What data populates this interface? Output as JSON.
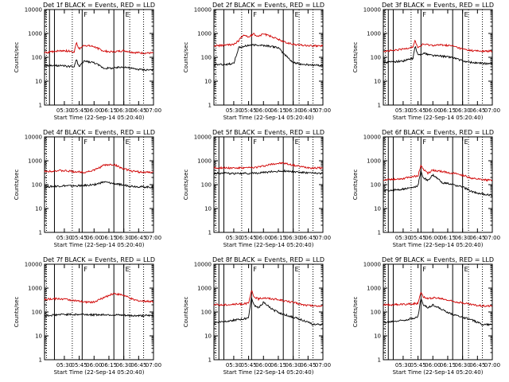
{
  "figure": {
    "x_axis_label": "Start Time (22-Sep-14 05:20:40)",
    "y_axis_label": "Counts/sec",
    "y_tick_labels": [
      "1",
      "10",
      "100",
      "1000",
      "10000"
    ],
    "x_tick_labels": [
      "05:30",
      "05:45",
      "06:00",
      "06:15",
      "06:30",
      "06:45",
      "07:00"
    ],
    "colors": {
      "events": "#000000",
      "lld": "#d00000",
      "axes": "#000000"
    }
  },
  "chart_data": [
    {
      "type": "line",
      "title": "Det 1f BLACK = Events, RED = LLD",
      "ylog": true,
      "ylim": [
        1,
        10000
      ],
      "xlim_minutes": [
        -10,
        100
      ],
      "event_markers_minutes": [
        -5,
        0,
        28,
        60,
        70
      ],
      "dashed_markers_minutes": [
        -8,
        18,
        76,
        90
      ],
      "segment_labels": [
        "F",
        "E"
      ],
      "series": [
        {
          "name": "Events",
          "x": [
            -10,
            0,
            10,
            20,
            22,
            25,
            30,
            40,
            50,
            60,
            70,
            80,
            90,
            100
          ],
          "values": [
            45,
            45,
            43,
            40,
            80,
            40,
            70,
            60,
            35,
            35,
            40,
            33,
            30,
            30
          ]
        },
        {
          "name": "LLD",
          "x": [
            -10,
            0,
            10,
            20,
            22,
            25,
            30,
            40,
            50,
            60,
            70,
            80,
            90,
            100
          ],
          "values": [
            150,
            180,
            190,
            170,
            420,
            220,
            320,
            280,
            180,
            170,
            190,
            160,
            150,
            150
          ]
        }
      ]
    },
    {
      "type": "line",
      "title": "Det 2f BLACK = Events, RED = LLD",
      "ylog": true,
      "ylim": [
        1,
        10000
      ],
      "xlim_minutes": [
        -10,
        100
      ],
      "event_markers_minutes": [
        0,
        28,
        60,
        70
      ],
      "dashed_markers_minutes": [
        -8,
        18,
        76,
        90
      ],
      "segment_labels": [
        "F",
        "E"
      ],
      "series": [
        {
          "name": "Events",
          "x": [
            -10,
            0,
            10,
            15,
            25,
            35,
            45,
            55,
            60,
            70,
            80,
            90,
            100
          ],
          "values": [
            50,
            50,
            55,
            250,
            320,
            330,
            300,
            250,
            150,
            60,
            50,
            48,
            45
          ]
        },
        {
          "name": "LLD",
          "x": [
            -10,
            0,
            10,
            15,
            20,
            25,
            30,
            35,
            40,
            45,
            50,
            60,
            70,
            80,
            90,
            100
          ],
          "values": [
            300,
            320,
            350,
            500,
            900,
            700,
            950,
            750,
            1000,
            800,
            700,
            450,
            350,
            320,
            300,
            300
          ]
        }
      ]
    },
    {
      "type": "line",
      "title": "Det 3f BLACK = Events, RED = LLD",
      "ylog": true,
      "ylim": [
        1,
        10000
      ],
      "xlim_minutes": [
        -10,
        100
      ],
      "event_markers_minutes": [
        -5,
        0,
        28,
        60,
        70
      ],
      "dashed_markers_minutes": [
        -8,
        18,
        76,
        90
      ],
      "segment_labels": [
        "F",
        "E"
      ],
      "series": [
        {
          "name": "Events",
          "x": [
            -10,
            0,
            10,
            20,
            22,
            25,
            30,
            40,
            50,
            60,
            70,
            80,
            90,
            100
          ],
          "values": [
            60,
            65,
            70,
            90,
            300,
            120,
            150,
            120,
            110,
            100,
            70,
            60,
            55,
            55
          ]
        },
        {
          "name": "LLD",
          "x": [
            -10,
            0,
            10,
            20,
            22,
            25,
            30,
            40,
            50,
            60,
            70,
            80,
            90,
            100
          ],
          "values": [
            180,
            190,
            220,
            280,
            500,
            250,
            350,
            320,
            330,
            300,
            220,
            190,
            180,
            180
          ]
        }
      ]
    },
    {
      "type": "line",
      "title": "Det 4f BLACK = Events, RED = LLD",
      "ylog": true,
      "ylim": [
        1,
        10000
      ],
      "xlim_minutes": [
        -10,
        100
      ],
      "event_markers_minutes": [
        0,
        28,
        60,
        70
      ],
      "dashed_markers_minutes": [
        -8,
        18,
        76,
        90
      ],
      "segment_labels": [
        "F",
        "E"
      ],
      "series": [
        {
          "name": "Events",
          "x": [
            -10,
            0,
            10,
            20,
            30,
            40,
            50,
            60,
            70,
            80,
            90,
            100
          ],
          "values": [
            80,
            85,
            90,
            88,
            92,
            100,
            130,
            110,
            95,
            85,
            80,
            78
          ]
        },
        {
          "name": "LLD",
          "x": [
            -10,
            0,
            10,
            20,
            30,
            40,
            50,
            60,
            70,
            80,
            90,
            100
          ],
          "values": [
            350,
            380,
            380,
            350,
            330,
            400,
            650,
            700,
            450,
            360,
            330,
            320
          ]
        }
      ]
    },
    {
      "type": "line",
      "title": "Det 5f BLACK = Events, RED = LLD",
      "ylog": true,
      "ylim": [
        1,
        10000
      ],
      "xlim_minutes": [
        -10,
        100
      ],
      "event_markers_minutes": [
        -5,
        0,
        28,
        60,
        70
      ],
      "dashed_markers_minutes": [
        -8,
        18,
        76,
        90
      ],
      "segment_labels": [
        "F",
        "E"
      ],
      "series": [
        {
          "name": "Events",
          "x": [
            -10,
            0,
            10,
            20,
            30,
            40,
            50,
            60,
            70,
            80,
            90,
            100
          ],
          "values": [
            300,
            300,
            290,
            290,
            300,
            320,
            350,
            380,
            350,
            320,
            300,
            300
          ]
        },
        {
          "name": "LLD",
          "x": [
            -10,
            0,
            10,
            20,
            30,
            40,
            50,
            60,
            70,
            80,
            90,
            100
          ],
          "values": [
            500,
            510,
            500,
            500,
            520,
            600,
            750,
            800,
            650,
            550,
            500,
            500
          ]
        }
      ]
    },
    {
      "type": "line",
      "title": "Det 6f BLACK = Events, RED = LLD",
      "ylog": true,
      "ylim": [
        1,
        10000
      ],
      "xlim_minutes": [
        -10,
        100
      ],
      "event_markers_minutes": [
        -5,
        0,
        28,
        60,
        70
      ],
      "dashed_markers_minutes": [
        -8,
        18,
        76,
        90
      ],
      "segment_labels": [
        "F",
        "E"
      ],
      "series": [
        {
          "name": "Events",
          "x": [
            -10,
            0,
            10,
            20,
            25,
            28,
            30,
            35,
            40,
            50,
            60,
            70,
            80,
            90,
            100
          ],
          "values": [
            55,
            60,
            65,
            75,
            90,
            400,
            200,
            150,
            250,
            120,
            100,
            80,
            50,
            40,
            35
          ]
        },
        {
          "name": "LLD",
          "x": [
            -10,
            0,
            10,
            20,
            25,
            28,
            30,
            35,
            40,
            50,
            60,
            70,
            80,
            90,
            100
          ],
          "values": [
            160,
            170,
            180,
            220,
            230,
            650,
            450,
            300,
            400,
            350,
            300,
            250,
            180,
            160,
            150
          ]
        }
      ]
    },
    {
      "type": "line",
      "title": "Det 7f BLACK = Events, RED = LLD",
      "ylog": true,
      "ylim": [
        1,
        10000
      ],
      "xlim_minutes": [
        -10,
        100
      ],
      "event_markers_minutes": [
        0,
        28,
        60,
        70
      ],
      "dashed_markers_minutes": [
        -8,
        18,
        76,
        90
      ],
      "segment_labels": [
        "F",
        "E"
      ],
      "series": [
        {
          "name": "Events",
          "x": [
            -10,
            0,
            10,
            20,
            30,
            40,
            50,
            60,
            70,
            80,
            90,
            100
          ],
          "values": [
            70,
            75,
            80,
            78,
            80,
            75,
            78,
            75,
            72,
            70,
            70,
            70
          ]
        },
        {
          "name": "LLD",
          "x": [
            -10,
            0,
            10,
            20,
            30,
            40,
            50,
            60,
            70,
            80,
            90,
            100
          ],
          "values": [
            330,
            360,
            350,
            300,
            260,
            260,
            400,
            600,
            500,
            320,
            280,
            280
          ]
        }
      ]
    },
    {
      "type": "line",
      "title": "Det 8f BLACK = Events, RED = LLD",
      "ylog": true,
      "ylim": [
        1,
        10000
      ],
      "xlim_minutes": [
        -10,
        100
      ],
      "event_markers_minutes": [
        -5,
        0,
        28,
        60,
        70
      ],
      "dashed_markers_minutes": [
        -8,
        18,
        76,
        90
      ],
      "segment_labels": [
        "F",
        "E"
      ],
      "series": [
        {
          "name": "Events",
          "x": [
            -10,
            0,
            10,
            20,
            25,
            28,
            30,
            35,
            40,
            50,
            60,
            70,
            80,
            90,
            100
          ],
          "values": [
            35,
            40,
            45,
            50,
            60,
            450,
            200,
            150,
            250,
            120,
            80,
            60,
            45,
            30,
            30
          ]
        },
        {
          "name": "LLD",
          "x": [
            -10,
            0,
            10,
            20,
            25,
            28,
            30,
            35,
            40,
            50,
            60,
            70,
            80,
            90,
            100
          ],
          "values": [
            200,
            200,
            210,
            220,
            230,
            800,
            450,
            350,
            400,
            350,
            300,
            250,
            200,
            180,
            180
          ]
        }
      ]
    },
    {
      "type": "line",
      "title": "Det 9f BLACK = Events, RED = LLD",
      "ylog": true,
      "ylim": [
        1,
        10000
      ],
      "xlim_minutes": [
        -10,
        100
      ],
      "event_markers_minutes": [
        -5,
        0,
        28,
        60,
        70
      ],
      "dashed_markers_minutes": [
        -8,
        18,
        76,
        90
      ],
      "segment_labels": [
        "F",
        "E"
      ],
      "series": [
        {
          "name": "Events",
          "x": [
            -10,
            0,
            10,
            20,
            25,
            28,
            30,
            35,
            40,
            50,
            60,
            70,
            80,
            90,
            100
          ],
          "values": [
            35,
            40,
            45,
            55,
            60,
            400,
            200,
            150,
            200,
            120,
            80,
            60,
            45,
            30,
            30
          ]
        },
        {
          "name": "LLD",
          "x": [
            -10,
            0,
            10,
            20,
            25,
            28,
            30,
            35,
            40,
            50,
            60,
            70,
            80,
            90,
            100
          ],
          "values": [
            200,
            200,
            210,
            220,
            230,
            750,
            450,
            350,
            400,
            350,
            280,
            240,
            200,
            180,
            180
          ]
        }
      ]
    }
  ]
}
